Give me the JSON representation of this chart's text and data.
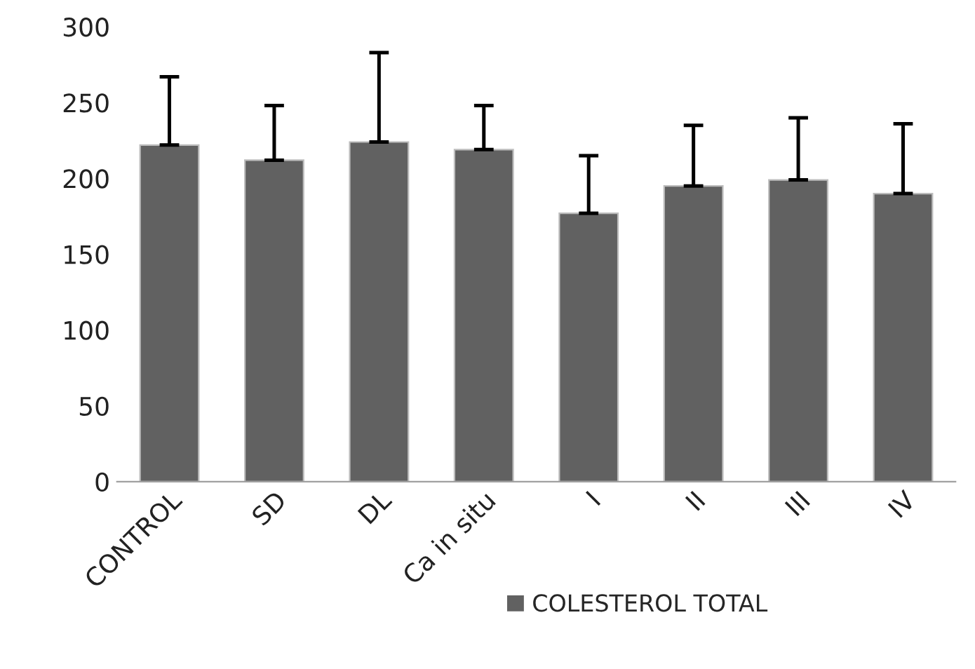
{
  "chart_data": {
    "type": "bar",
    "categories": [
      "CONTROL",
      "SD",
      "DL",
      "Ca in situ",
      "I",
      "II",
      "III",
      "IV"
    ],
    "series": [
      {
        "name": "COLESTEROL TOTAL",
        "color": "#616161",
        "values": [
          222,
          212,
          224,
          219,
          177,
          195,
          199,
          190
        ],
        "errors": [
          [
            222,
            267
          ],
          [
            212,
            248
          ],
          [
            224,
            283
          ],
          [
            219,
            248
          ],
          [
            177,
            215
          ],
          [
            195,
            235
          ],
          [
            199,
            240
          ],
          [
            190,
            236
          ]
        ]
      }
    ],
    "ylim": [
      0,
      300
    ],
    "yticks": [
      0,
      50,
      100,
      150,
      200,
      250,
      300
    ],
    "grid": false,
    "legend": "bottom"
  }
}
